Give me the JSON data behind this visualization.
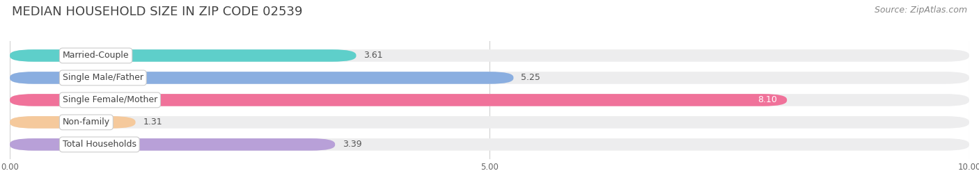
{
  "title": "MEDIAN HOUSEHOLD SIZE IN ZIP CODE 02539",
  "source": "Source: ZipAtlas.com",
  "categories": [
    "Married-Couple",
    "Single Male/Father",
    "Single Female/Mother",
    "Non-family",
    "Total Households"
  ],
  "values": [
    3.61,
    5.25,
    8.1,
    1.31,
    3.39
  ],
  "value_labels": [
    "3.61",
    "5.25",
    "8.10",
    "1.31",
    "3.39"
  ],
  "bar_colors": [
    "#5ecfca",
    "#8aaee0",
    "#f0729a",
    "#f5c99c",
    "#b8a0d8"
  ],
  "bar_bg_colors": [
    "#ededee",
    "#ededee",
    "#ededee",
    "#ededee",
    "#ededee"
  ],
  "xlim": [
    0,
    10
  ],
  "xticks": [
    0.0,
    5.0,
    10.0
  ],
  "xticklabels": [
    "0.00",
    "5.00",
    "10.00"
  ],
  "title_fontsize": 13,
  "source_fontsize": 9,
  "label_fontsize": 9,
  "value_fontsize": 9,
  "background_color": "#ffffff"
}
